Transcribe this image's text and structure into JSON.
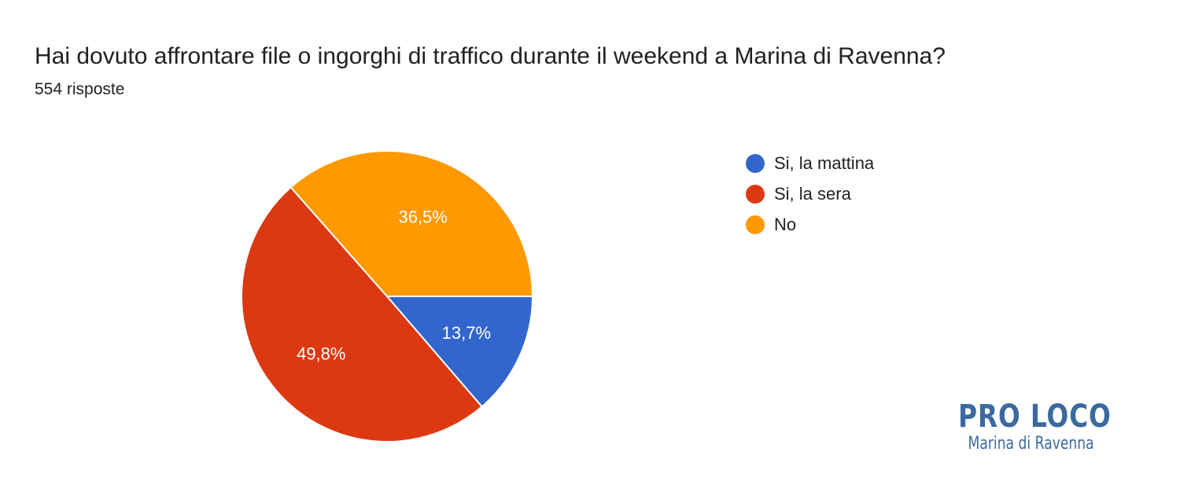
{
  "chart_data": {
    "type": "pie",
    "title": "Hai dovuto affrontare file o ingorghi di traffico durante il weekend a Marina di Ravenna?",
    "subtitle": "554 risposte",
    "slices": [
      {
        "label": "Si, la mattina",
        "value": 13.7,
        "display": "13,7%",
        "color": "#3366cc"
      },
      {
        "label": "Si, la sera",
        "value": 49.8,
        "display": "49,8%",
        "color": "#dc3912"
      },
      {
        "label": "No",
        "value": 36.5,
        "display": "36,5%",
        "color": "#ff9900"
      }
    ],
    "legend_position": "right"
  },
  "logo": {
    "main": "PRO LOCO",
    "sub": "Marina di Ravenna"
  }
}
